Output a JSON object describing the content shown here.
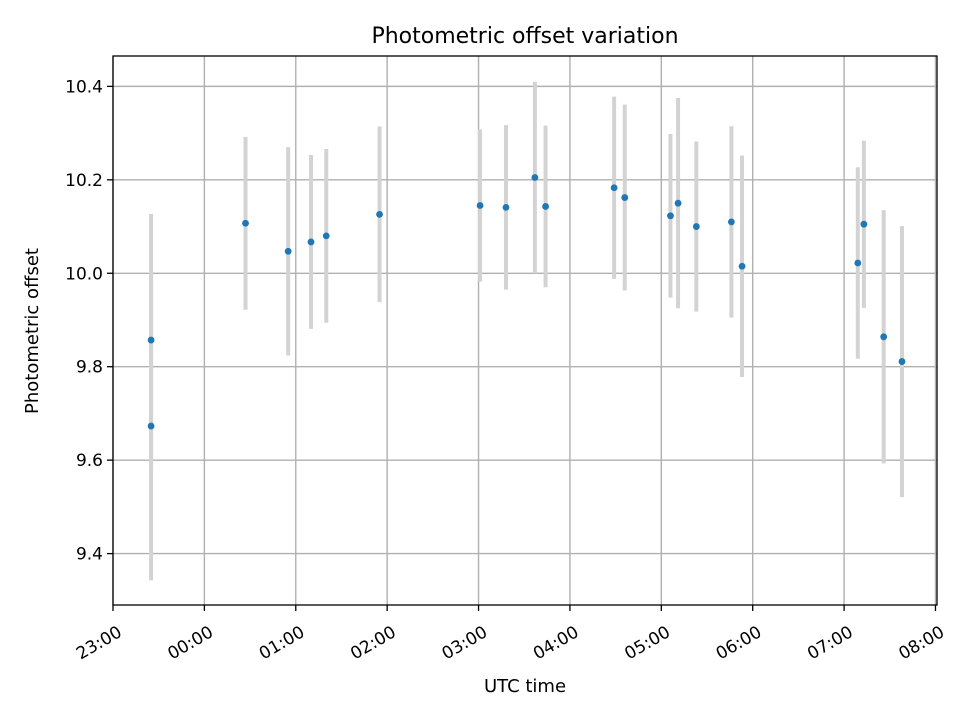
{
  "chart_data": {
    "type": "scatter",
    "title": "Photometric offset variation",
    "xlabel": "UTC time",
    "ylabel": "Photometric offset",
    "xlim": [
      "23:00",
      "08:01"
    ],
    "ylim": [
      9.29,
      10.465
    ],
    "x_ticks": [
      "23:00",
      "00:00",
      "01:00",
      "02:00",
      "03:00",
      "04:00",
      "05:00",
      "06:00",
      "07:00",
      "08:00"
    ],
    "y_ticks": [
      9.4,
      9.6,
      9.8,
      10.0,
      10.2,
      10.4
    ],
    "y_tick_labels": [
      "9.4",
      "9.6",
      "9.8",
      "10.0",
      "10.2",
      "10.4"
    ],
    "grid": true,
    "point_color": "#1f77b4",
    "errorbar_color": "#d3d3d3",
    "points": [
      {
        "t": "23:25",
        "y": 9.857,
        "err": 0.27
      },
      {
        "t": "23:25",
        "y": 9.673,
        "err": 0.33
      },
      {
        "t": "00:27",
        "y": 10.107,
        "err": 0.185
      },
      {
        "t": "00:55",
        "y": 10.047,
        "err": 0.223
      },
      {
        "t": "01:10",
        "y": 10.067,
        "err": 0.186
      },
      {
        "t": "01:20",
        "y": 10.08,
        "err": 0.186
      },
      {
        "t": "01:55",
        "y": 10.126,
        "err": 0.188
      },
      {
        "t": "03:01",
        "y": 10.145,
        "err": 0.163
      },
      {
        "t": "03:18",
        "y": 10.141,
        "err": 0.176
      },
      {
        "t": "03:37",
        "y": 10.205,
        "err": 0.205
      },
      {
        "t": "03:44",
        "y": 10.143,
        "err": 0.173
      },
      {
        "t": "04:29",
        "y": 10.183,
        "err": 0.195
      },
      {
        "t": "04:36",
        "y": 10.162,
        "err": 0.199
      },
      {
        "t": "05:06",
        "y": 10.123,
        "err": 0.175
      },
      {
        "t": "05:11",
        "y": 10.15,
        "err": 0.225
      },
      {
        "t": "05:23",
        "y": 10.1,
        "err": 0.182
      },
      {
        "t": "05:46",
        "y": 10.11,
        "err": 0.205
      },
      {
        "t": "05:53",
        "y": 10.015,
        "err": 0.237
      },
      {
        "t": "07:09",
        "y": 10.022,
        "err": 0.205
      },
      {
        "t": "07:13",
        "y": 10.105,
        "err": 0.179
      },
      {
        "t": "07:26",
        "y": 9.864,
        "err": 0.271
      },
      {
        "t": "07:38",
        "y": 9.811,
        "err": 0.29
      }
    ]
  }
}
